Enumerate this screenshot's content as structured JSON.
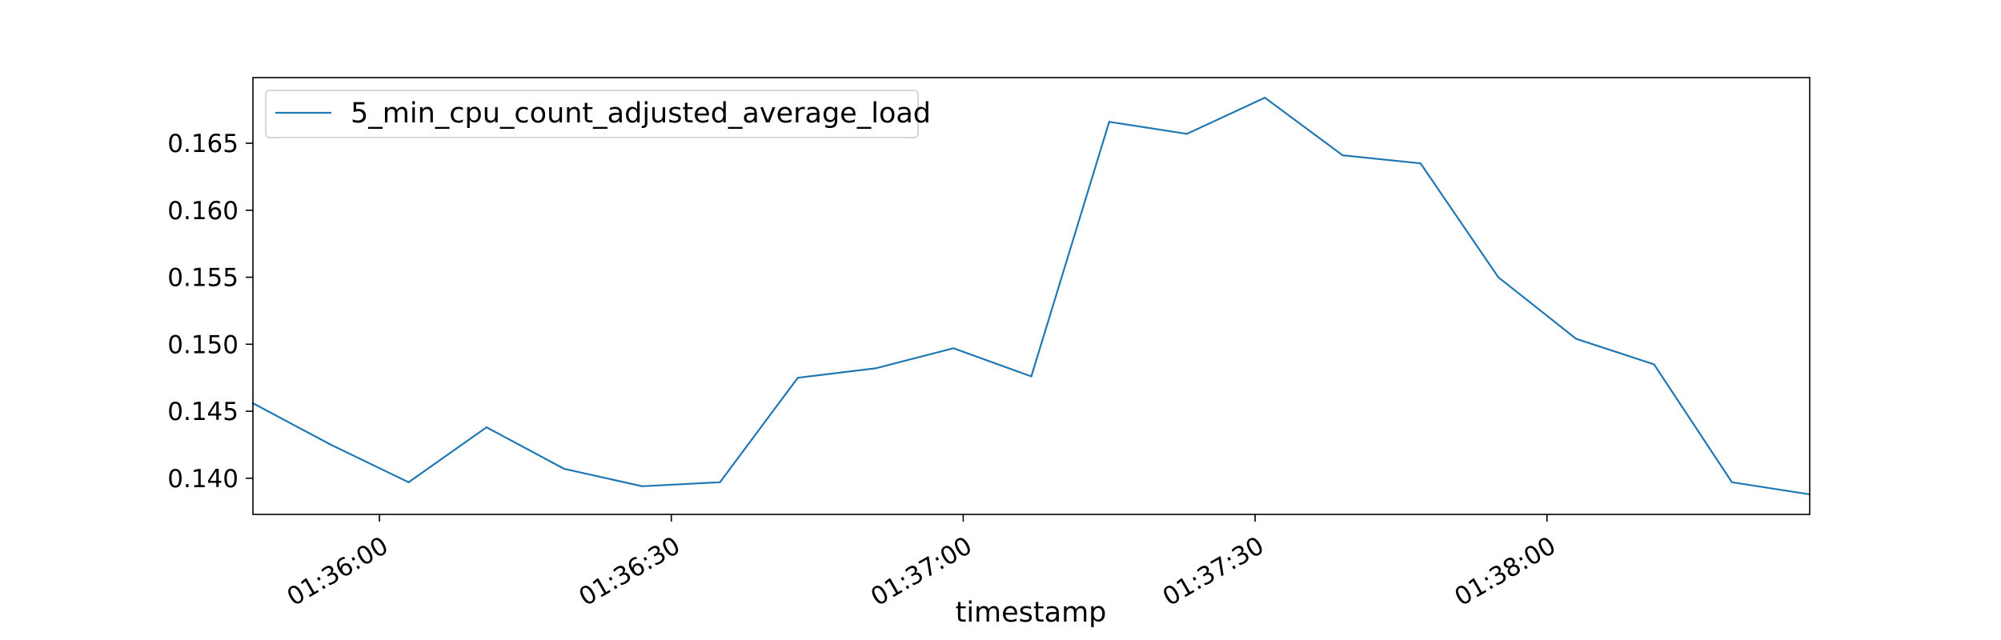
{
  "chart_data": {
    "type": "line",
    "title": "",
    "xlabel": "timestamp",
    "ylabel": "",
    "x_ticks": [
      "01:36:00",
      "01:36:30",
      "01:37:00",
      "01:37:30",
      "01:38:00"
    ],
    "y_ticks": [
      "0.140",
      "0.145",
      "0.150",
      "0.155",
      "0.160",
      "0.165"
    ],
    "ylim": [
      0.1373,
      0.1699
    ],
    "xlim": [
      "01:35:47",
      "01:38:27"
    ],
    "grid": false,
    "legend_position": "upper-left",
    "series": [
      {
        "name": "5_min_cpu_count_adjusted_average_load",
        "color": "#1f77b4",
        "points": [
          {
            "t": "01:35:47",
            "v": 0.1456
          },
          {
            "t": "01:35:55",
            "v": 0.1425
          },
          {
            "t": "01:36:03",
            "v": 0.1397
          },
          {
            "t": "01:36:11",
            "v": 0.1438
          },
          {
            "t": "01:36:19",
            "v": 0.1407
          },
          {
            "t": "01:36:27",
            "v": 0.1394
          },
          {
            "t": "01:36:35",
            "v": 0.1397
          },
          {
            "t": "01:36:43",
            "v": 0.1475
          },
          {
            "t": "01:36:51",
            "v": 0.1482
          },
          {
            "t": "01:36:59",
            "v": 0.1497
          },
          {
            "t": "01:37:07",
            "v": 0.1476
          },
          {
            "t": "01:37:15",
            "v": 0.1666
          },
          {
            "t": "01:37:23",
            "v": 0.1657
          },
          {
            "t": "01:37:31",
            "v": 0.1684
          },
          {
            "t": "01:37:39",
            "v": 0.1641
          },
          {
            "t": "01:37:47",
            "v": 0.1635
          },
          {
            "t": "01:37:55",
            "v": 0.155
          },
          {
            "t": "01:38:03",
            "v": 0.1504
          },
          {
            "t": "01:38:11",
            "v": 0.1485
          },
          {
            "t": "01:38:19",
            "v": 0.1397
          },
          {
            "t": "01:38:27",
            "v": 0.1388
          }
        ]
      }
    ]
  }
}
